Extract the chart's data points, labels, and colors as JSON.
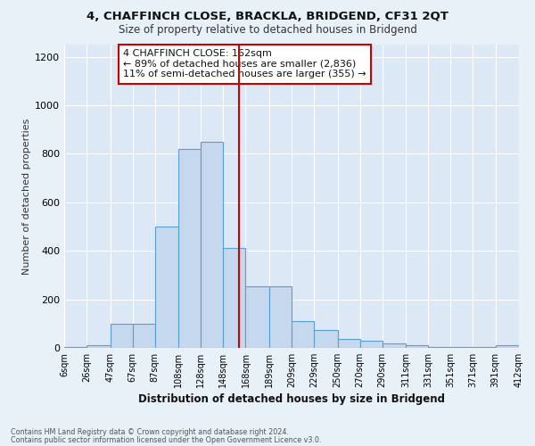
{
  "title": "4, CHAFFINCH CLOSE, BRACKLA, BRIDGEND, CF31 2QT",
  "subtitle": "Size of property relative to detached houses in Bridgend",
  "xlabel": "Distribution of detached houses by size in Bridgend",
  "ylabel": "Number of detached properties",
  "footnote1": "Contains HM Land Registry data © Crown copyright and database right 2024.",
  "footnote2": "Contains public sector information licensed under the Open Government Licence v3.0.",
  "annotation_title": "4 CHAFFINCH CLOSE: 162sqm",
  "annotation_line1": "← 89% of detached houses are smaller (2,836)",
  "annotation_line2": "11% of semi-detached houses are larger (355) →",
  "bar_edges": [
    6,
    26,
    47,
    67,
    87,
    108,
    128,
    148,
    168,
    189,
    209,
    229,
    250,
    270,
    290,
    311,
    331,
    351,
    371,
    391,
    412
  ],
  "bar_heights": [
    5,
    10,
    100,
    100,
    500,
    820,
    850,
    410,
    255,
    255,
    110,
    75,
    35,
    30,
    20,
    10,
    5,
    3,
    2,
    10
  ],
  "bar_color": "#c5d8ed",
  "bar_edge_color": "#5a9fd4",
  "vline_color": "#cc0000",
  "vline_x": 162,
  "annotation_box_color": "#ffffff",
  "annotation_box_edge": "#cc0000",
  "bg_color": "#e8f0f8",
  "plot_bg_color": "#dce8f5",
  "ylim": [
    0,
    1250
  ],
  "yticks": [
    0,
    200,
    400,
    600,
    800,
    1000,
    1200
  ],
  "tick_labels": [
    "6sqm",
    "26sqm",
    "47sqm",
    "67sqm",
    "87sqm",
    "108sqm",
    "128sqm",
    "148sqm",
    "168sqm",
    "189sqm",
    "209sqm",
    "229sqm",
    "250sqm",
    "270sqm",
    "290sqm",
    "311sqm",
    "331sqm",
    "351sqm",
    "371sqm",
    "391sqm",
    "412sqm"
  ]
}
